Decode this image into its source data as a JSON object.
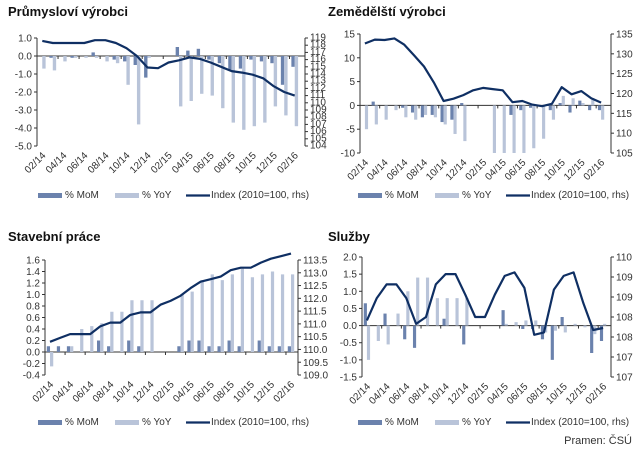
{
  "source_label": "Pramen: ČSÚ",
  "colors": {
    "mom": "#6b82ad",
    "yoy": "#b9c4d9",
    "index": "#0f2f63",
    "axis": "#333333"
  },
  "legend": {
    "mom": "% MoM",
    "yoy": "% YoY",
    "index": "Index (2010=100, rhs)"
  },
  "chart_data": [
    {
      "type": "bar",
      "title": "Průmysloví výrobci",
      "categories": [
        "02/14",
        "03/14",
        "04/14",
        "05/14",
        "06/14",
        "07/14",
        "08/14",
        "09/14",
        "10/14",
        "11/14",
        "12/14",
        "01/15",
        "02/15",
        "03/15",
        "04/15",
        "05/15",
        "06/15",
        "07/15",
        "08/15",
        "09/15",
        "10/15",
        "11/15",
        "12/15",
        "01/16",
        "02/16"
      ],
      "x_tick_labels": [
        "02/14",
        "04/14",
        "06/14",
        "08/14",
        "10/14",
        "12/14",
        "02/15",
        "04/15",
        "06/15",
        "08/15",
        "10/15",
        "12/15",
        "02/16"
      ],
      "ylim": [
        -5,
        1
      ],
      "y_ticks": [
        "1.0",
        "0.0",
        "-1.0",
        "-2.0",
        "-3.0",
        "-4.0",
        "-5.0"
      ],
      "y2lim": [
        104,
        119
      ],
      "y2_ticks": [
        "119",
        "118",
        "117",
        "116",
        "115",
        "114",
        "113",
        "112",
        "111",
        "110",
        "109",
        "108",
        "107",
        "106",
        "105",
        "104"
      ],
      "series": [
        {
          "name": "% MoM",
          "kind": "bar",
          "values": [
            0.0,
            -0.1,
            0.0,
            -0.1,
            0.0,
            0.2,
            0.0,
            -0.2,
            -0.3,
            -0.5,
            -1.2,
            0.0,
            0.0,
            0.5,
            0.3,
            0.4,
            -0.2,
            -0.4,
            -0.8,
            -0.7,
            -0.2,
            -0.3,
            -0.4,
            -1.6,
            -0.6
          ]
        },
        {
          "name": "% YoY",
          "kind": "bar",
          "values": [
            -0.7,
            -0.8,
            -0.3,
            -0.1,
            -0.1,
            -0.1,
            -0.3,
            -0.4,
            -1.6,
            -3.8,
            -0.1,
            0.0,
            0.0,
            -2.8,
            -2.5,
            -2.1,
            -2.2,
            -2.9,
            -3.7,
            -4.1,
            -3.9,
            -3.7,
            -2.8,
            -3.3,
            -3.9
          ]
        },
        {
          "name": "Index (2010=100, rhs)",
          "kind": "line",
          "axis": "right",
          "values": [
            118.6,
            118.3,
            118.3,
            118.3,
            118.3,
            118.7,
            118.7,
            118.3,
            117.6,
            116.5,
            114.9,
            114.8,
            115.6,
            115.9,
            116.3,
            116.1,
            115.6,
            115.0,
            114.4,
            114.2,
            113.9,
            113.4,
            112.3,
            111.5,
            111.0
          ]
        }
      ]
    },
    {
      "type": "bar",
      "title": "Zemědělští výrobci",
      "categories": [
        "02/14",
        "03/14",
        "04/14",
        "05/14",
        "06/14",
        "07/14",
        "08/14",
        "09/14",
        "10/14",
        "11/14",
        "12/14",
        "01/15",
        "02/15",
        "03/15",
        "04/15",
        "05/15",
        "06/15",
        "07/15",
        "08/15",
        "09/15",
        "10/15",
        "11/15",
        "12/15",
        "01/16",
        "02/16"
      ],
      "x_tick_labels": [
        "02/14",
        "04/14",
        "06/14",
        "08/14",
        "10/14",
        "12/14",
        "02/15",
        "04/15",
        "06/15",
        "08/15",
        "10/15",
        "12/15",
        "02/16"
      ],
      "ylim": [
        -10,
        15
      ],
      "y_ticks": [
        "15",
        "10",
        "5",
        "0",
        "-5",
        "-10"
      ],
      "y2lim": [
        105,
        135
      ],
      "y2_ticks": [
        "135",
        "130",
        "125",
        "120",
        "115",
        "110",
        "105"
      ],
      "series": [
        {
          "name": "% MoM",
          "kind": "bar",
          "values": [
            0.0,
            0.8,
            0.0,
            0.0,
            -0.5,
            -1.5,
            -2.5,
            -2.0,
            -3.5,
            -3.0,
            0.5,
            0.0,
            0.0,
            0.0,
            0.0,
            -2.0,
            -1.0,
            -0.5,
            0.0,
            -1.0,
            0.5,
            -1.5,
            1.0,
            -1.0,
            -1.0
          ]
        },
        {
          "name": "% YoY",
          "kind": "bar",
          "values": [
            -5.0,
            -4.0,
            -3.0,
            -1.0,
            -2.5,
            -3.0,
            -2.0,
            -2.5,
            -4.0,
            -6.0,
            -7.5,
            0.0,
            0.0,
            -10.0,
            -10.0,
            -10.0,
            -10.0,
            -9.0,
            -7.0,
            -3.0,
            2.0,
            1.5,
            0.5,
            1.5,
            -3.0
          ]
        },
        {
          "name": "Index (2010=100, rhs)",
          "kind": "line",
          "axis": "right",
          "values": [
            132.6,
            133.6,
            133.5,
            133.9,
            132.3,
            129.6,
            126.8,
            122.8,
            118.1,
            118.7,
            119.6,
            120.8,
            121.4,
            121.1,
            120.8,
            117.8,
            118.1,
            117.2,
            116.8,
            117.4,
            121.6,
            119.8,
            120.6,
            118.8,
            117.7
          ]
        }
      ]
    },
    {
      "type": "bar",
      "title": "Stavební práce",
      "categories": [
        "02/14",
        "03/14",
        "04/14",
        "05/14",
        "06/14",
        "07/14",
        "08/14",
        "09/14",
        "10/14",
        "11/14",
        "12/14",
        "01/15",
        "02/15",
        "03/15",
        "04/15",
        "05/15",
        "06/15",
        "07/15",
        "08/15",
        "09/15",
        "10/15",
        "11/15",
        "12/15",
        "01/16",
        "02/16"
      ],
      "x_tick_labels": [
        "02/14",
        "04/14",
        "06/14",
        "08/14",
        "10/14",
        "12/14",
        "02/15",
        "04/15",
        "06/15",
        "08/15",
        "10/15",
        "12/15",
        "02/16"
      ],
      "ylim": [
        -0.4,
        1.6
      ],
      "y_ticks": [
        "1.6",
        "1.4",
        "1.2",
        "1.0",
        "0.8",
        "0.6",
        "0.4",
        "0.2",
        "0.0",
        "-0.2",
        "-0.4"
      ],
      "y2lim": [
        109.0,
        113.5
      ],
      "y2_ticks": [
        "113.5",
        "113.0",
        "112.5",
        "112.0",
        "111.5",
        "111.0",
        "110.5",
        "110.0",
        "109.5",
        "109.0"
      ],
      "series": [
        {
          "name": "% MoM",
          "kind": "bar",
          "values": [
            0.1,
            0.1,
            0.1,
            0.0,
            0.0,
            0.2,
            0.1,
            0.0,
            0.2,
            0.1,
            0.0,
            0.0,
            0.0,
            0.1,
            0.2,
            0.2,
            0.1,
            0.1,
            0.2,
            0.1,
            0.0,
            0.2,
            0.1,
            0.1,
            0.1
          ]
        },
        {
          "name": "% YoY",
          "kind": "bar",
          "values": [
            -0.25,
            0.0,
            0.1,
            0.4,
            0.45,
            0.5,
            0.7,
            0.7,
            0.9,
            0.9,
            0.9,
            0.0,
            0.0,
            1.0,
            1.05,
            1.25,
            1.35,
            1.25,
            1.35,
            1.45,
            1.3,
            1.35,
            1.4,
            1.35,
            1.35
          ]
        },
        {
          "name": "Index (2010=100, rhs)",
          "kind": "line",
          "axis": "right",
          "values": [
            110.3,
            110.45,
            110.6,
            110.6,
            110.6,
            110.9,
            111.05,
            111.05,
            111.35,
            111.45,
            111.45,
            111.75,
            111.9,
            112.1,
            112.4,
            112.65,
            112.75,
            112.85,
            113.1,
            113.2,
            113.2,
            113.4,
            113.55,
            113.65,
            113.75
          ]
        }
      ]
    },
    {
      "type": "bar",
      "title": "Služby",
      "categories": [
        "02/14",
        "03/14",
        "04/14",
        "05/14",
        "06/14",
        "07/14",
        "08/14",
        "09/14",
        "10/14",
        "11/14",
        "12/14",
        "01/15",
        "02/15",
        "03/15",
        "04/15",
        "05/15",
        "06/15",
        "07/15",
        "08/15",
        "09/15",
        "10/15",
        "11/15",
        "12/15",
        "01/16",
        "02/16"
      ],
      "x_tick_labels": [
        "02/14",
        "04/14",
        "06/14",
        "08/14",
        "10/14",
        "12/14",
        "02/15",
        "04/15",
        "06/15",
        "08/15",
        "10/15",
        "12/15",
        "02/16"
      ],
      "ylim": [
        -1.5,
        2.0
      ],
      "y_ticks": [
        "2.0",
        "1.5",
        "1.0",
        "0.5",
        "0.0",
        "-0.5",
        "-1.0",
        "-1.5"
      ],
      "y2lim": [
        106.75,
        110.25
      ],
      "y2_ticks": [
        "110",
        "109",
        "109",
        "108",
        "108",
        "107",
        "107"
      ],
      "series": [
        {
          "name": "% MoM",
          "kind": "bar",
          "values": [
            0.65,
            0.0,
            0.35,
            0.0,
            -0.4,
            -0.65,
            0.0,
            0.0,
            0.2,
            0.0,
            -0.55,
            0.0,
            0.0,
            0.0,
            0.45,
            0.0,
            -0.1,
            -0.1,
            -0.4,
            -1.0,
            0.25,
            0.0,
            0.0,
            -0.8,
            -0.45
          ]
        },
        {
          "name": "% YoY",
          "kind": "bar",
          "values": [
            -1.0,
            -0.45,
            -0.55,
            0.35,
            1.0,
            1.4,
            1.4,
            0.8,
            0.8,
            0.8,
            0.8,
            0.0,
            0.0,
            0.0,
            0.05,
            0.1,
            0.15,
            0.15,
            -0.2,
            -0.15,
            -0.2,
            0.05,
            -0.05,
            -0.25,
            0.05
          ]
        },
        {
          "name": "Index (2010=100, rhs)",
          "kind": "line",
          "axis": "right",
          "values": [
            108.4,
            109.05,
            109.45,
            109.45,
            109.05,
            108.3,
            108.5,
            109.45,
            109.75,
            109.75,
            109.15,
            108.5,
            108.5,
            109.15,
            109.7,
            109.8,
            109.35,
            107.98,
            108.05,
            109.3,
            109.7,
            109.8,
            108.9,
            108.12,
            108.18
          ]
        }
      ]
    }
  ]
}
